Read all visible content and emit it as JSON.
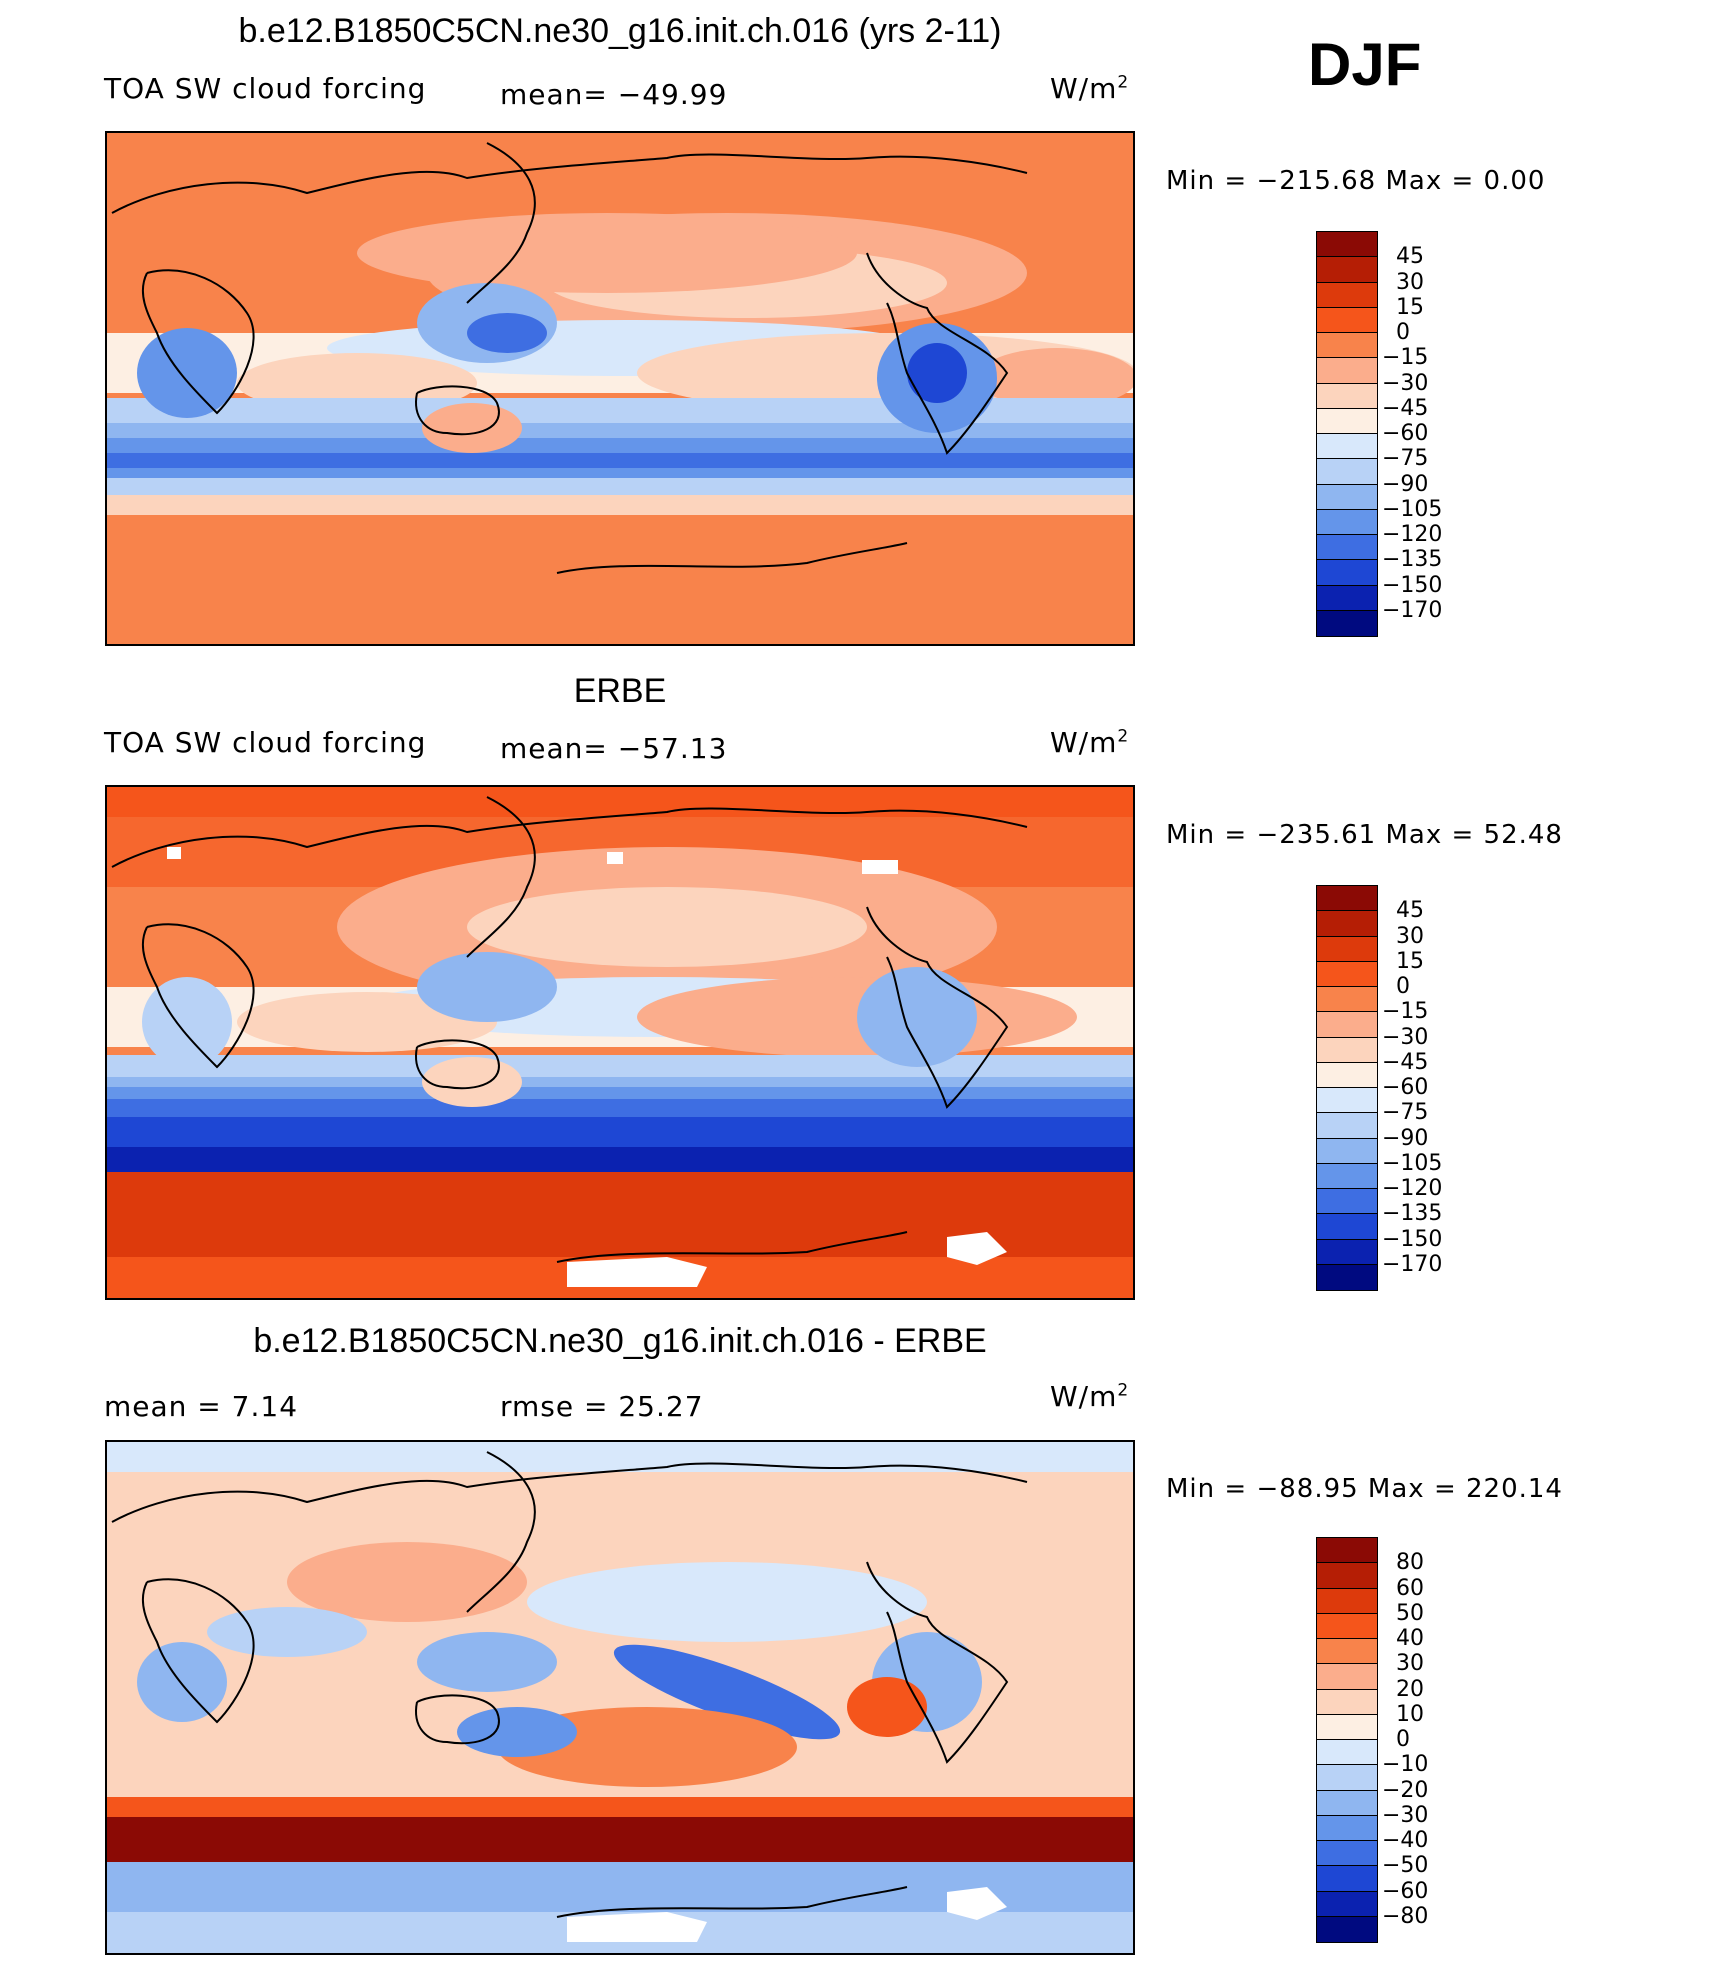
{
  "season": "DJF",
  "panels": [
    {
      "title": "b.e12.B1850C5CN.ne30_g16.init.ch.016 (yrs 2-11)",
      "left_label": "TOA SW cloud forcing",
      "center_label": "mean=  −49.99",
      "units": "W/m",
      "units_sup": "2",
      "min_max": "Min  =  −215.68  Max  =     0.00",
      "legend": {
        "labels": [
          "45",
          "30",
          "15",
          "0",
          "−15",
          "−30",
          "−45",
          "−60",
          "−75",
          "−90",
          "−105",
          "−120",
          "−135",
          "−150",
          "−170"
        ],
        "colors": [
          "#8b0a05",
          "#b51e05",
          "#dd3a0c",
          "#f5551b",
          "#f8834b",
          "#fbad8c",
          "#fcd4bd",
          "#fdefe3",
          "#d8e8fb",
          "#b8d2f6",
          "#8fb6f0",
          "#6495ea",
          "#3e6ee2",
          "#1e47d4",
          "#0b22b0",
          "#000a80"
        ]
      },
      "stats": {
        "mean": -49.99,
        "min": -215.68,
        "max": 0.0
      }
    },
    {
      "title": "ERBE",
      "left_label": "TOA SW cloud forcing",
      "center_label": "mean=  −57.13",
      "units": "W/m",
      "units_sup": "2",
      "min_max": "Min  =  −235.61  Max  =   52.48",
      "legend": {
        "labels": [
          "45",
          "30",
          "15",
          "0",
          "−15",
          "−30",
          "−45",
          "−60",
          "−75",
          "−90",
          "−105",
          "−120",
          "−135",
          "−150",
          "−170"
        ],
        "colors": [
          "#8b0a05",
          "#b51e05",
          "#dd3a0c",
          "#f5551b",
          "#f8834b",
          "#fbad8c",
          "#fcd4bd",
          "#fdefe3",
          "#d8e8fb",
          "#b8d2f6",
          "#8fb6f0",
          "#6495ea",
          "#3e6ee2",
          "#1e47d4",
          "#0b22b0",
          "#000a80"
        ]
      },
      "stats": {
        "mean": -57.13,
        "min": -235.61,
        "max": 52.48
      }
    },
    {
      "title": "b.e12.B1850C5CN.ne30_g16.init.ch.016 - ERBE",
      "left_label": "mean  =     7.14",
      "center_label": "rmse  =    25.27",
      "units": "W/m",
      "units_sup": "2",
      "min_max": "Min  =  −88.95  Max  =  220.14",
      "legend": {
        "labels": [
          "80",
          "60",
          "50",
          "40",
          "30",
          "20",
          "10",
          "0",
          "−10",
          "−20",
          "−30",
          "−40",
          "−50",
          "−60",
          "−80"
        ],
        "colors": [
          "#8b0a05",
          "#b51e05",
          "#dd3a0c",
          "#f5551b",
          "#f8834b",
          "#fbad8c",
          "#fcd4bd",
          "#fdefe3",
          "#d8e8fb",
          "#b8d2f6",
          "#8fb6f0",
          "#6495ea",
          "#3e6ee2",
          "#1e47d4",
          "#0b22b0",
          "#000a80"
        ]
      },
      "stats": {
        "mean": 7.14,
        "rmse": 25.27,
        "min": -88.95,
        "max": 220.14
      }
    }
  ]
}
